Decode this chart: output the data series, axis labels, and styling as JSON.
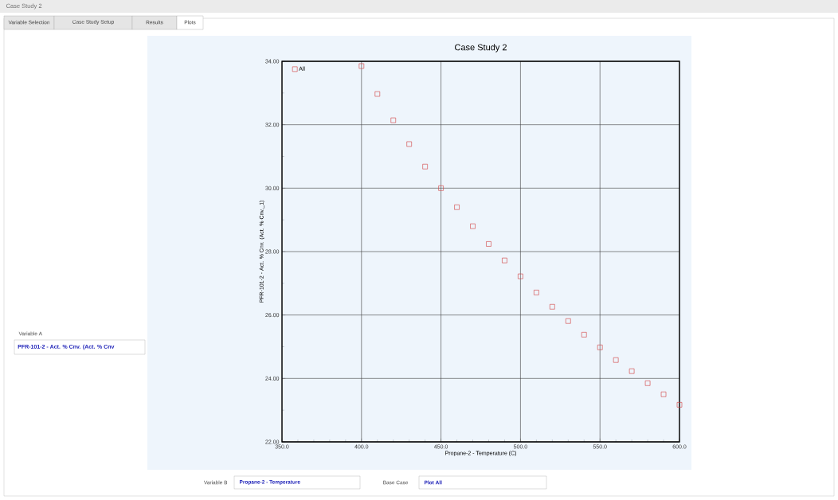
{
  "chart_data": {
    "type": "scatter",
    "title": "Case Study 2",
    "xlabel": "Propane-2 - Temperature (C)",
    "ylabel": "PFR-101-2 - Act. % Cnv. (Act. % Cnv._1)",
    "series": [
      {
        "name": "All",
        "color": "#d23c3c",
        "x": [
          400,
          410,
          420,
          430,
          440,
          450,
          460,
          470,
          480,
          490,
          500,
          510,
          520,
          530,
          540,
          550,
          560,
          570,
          580,
          590,
          600
        ],
        "values": [
          33.85,
          32.97,
          32.14,
          31.39,
          30.68,
          30.0,
          29.4,
          28.8,
          28.24,
          27.72,
          27.22,
          26.71,
          26.26,
          25.81,
          25.38,
          24.98,
          24.58,
          24.23,
          23.85,
          23.5,
          23.17
        ]
      }
    ],
    "xlim": [
      350,
      600
    ],
    "xticks": [
      {
        "value": 350,
        "label": "350.0"
      },
      {
        "value": 400,
        "label": "400.0"
      },
      {
        "value": 450,
        "label": "450.0"
      },
      {
        "value": 500,
        "label": "500.0"
      },
      {
        "value": 550,
        "label": "550.0"
      },
      {
        "value": 600,
        "label": "600.0"
      }
    ],
    "ylim": [
      22,
      34
    ],
    "yticks": [
      {
        "value": 22,
        "label": "22.00"
      },
      {
        "value": 24,
        "label": "24.00"
      },
      {
        "value": 26,
        "label": "26.00"
      },
      {
        "value": 28,
        "label": "28.00"
      },
      {
        "value": 30,
        "label": "30.00"
      },
      {
        "value": 32,
        "label": "32.00"
      },
      {
        "value": 34,
        "label": "34.00"
      }
    ],
    "grid": true,
    "legend": "top left",
    "marker": "square",
    "annotations": [
      "Case Study 2",
      "Variable Selection",
      "Case Study Setup",
      "Results",
      "Plots",
      "Variable A",
      "PFR-101-2 - Act. % Cnv. (Act. % Cnv",
      "Variable B",
      "Propane-2 - Temperature",
      "Base Case",
      "Plot All"
    ]
  }
}
